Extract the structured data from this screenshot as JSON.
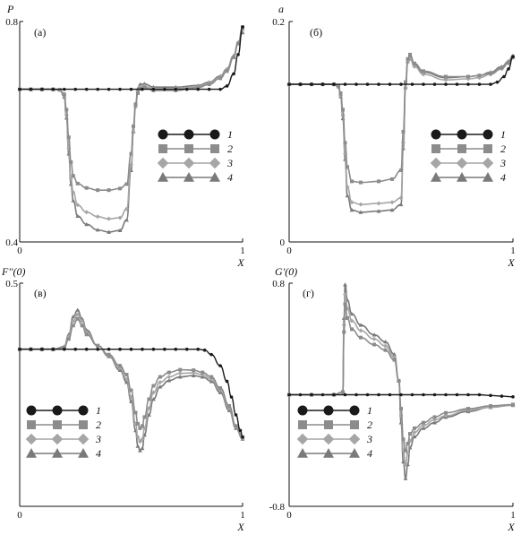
{
  "colors": {
    "series": [
      "#1a1a1a",
      "#8c8c8c",
      "#a6a6a6",
      "#7a7a7a"
    ],
    "axis": "#111111"
  },
  "legend_labels": [
    "1",
    "2",
    "3",
    "4"
  ],
  "chart_data": [
    {
      "type": "line",
      "panel_label": "(а)",
      "ylabel": "P",
      "xlabel": "X",
      "xlim": [
        0,
        1
      ],
      "ylim": [
        0.4,
        0.8
      ],
      "x_ticks": [
        "0",
        "1"
      ],
      "y_ticks": [
        "0.4",
        "0.8"
      ],
      "grid": false,
      "legend_position": "right",
      "series": [
        {
          "name": "1",
          "marker": "circle",
          "x": [
            0,
            0.05,
            0.1,
            0.15,
            0.2,
            0.25,
            0.3,
            0.35,
            0.4,
            0.45,
            0.5,
            0.55,
            0.6,
            0.65,
            0.7,
            0.75,
            0.8,
            0.85,
            0.9,
            0.93,
            0.96,
            0.98,
            1.0
          ],
          "y": [
            0.677,
            0.677,
            0.677,
            0.677,
            0.677,
            0.677,
            0.677,
            0.677,
            0.677,
            0.677,
            0.677,
            0.677,
            0.677,
            0.677,
            0.677,
            0.677,
            0.677,
            0.677,
            0.677,
            0.683,
            0.705,
            0.74,
            0.79
          ]
        },
        {
          "name": "2",
          "marker": "square",
          "x": [
            0,
            0.05,
            0.1,
            0.15,
            0.18,
            0.2,
            0.21,
            0.22,
            0.23,
            0.24,
            0.26,
            0.3,
            0.35,
            0.4,
            0.45,
            0.48,
            0.5,
            0.51,
            0.52,
            0.53,
            0.54,
            0.56,
            0.6,
            0.7,
            0.8,
            0.85,
            0.9,
            0.93,
            0.96,
            0.98,
            1.0
          ],
          "y": [
            0.677,
            0.677,
            0.677,
            0.677,
            0.676,
            0.668,
            0.64,
            0.59,
            0.545,
            0.52,
            0.506,
            0.498,
            0.494,
            0.494,
            0.497,
            0.505,
            0.56,
            0.61,
            0.65,
            0.67,
            0.678,
            0.68,
            0.675,
            0.675,
            0.68,
            0.686,
            0.697,
            0.71,
            0.735,
            0.76,
            0.79
          ]
        },
        {
          "name": "3",
          "marker": "diamond",
          "x": [
            0,
            0.05,
            0.1,
            0.15,
            0.18,
            0.2,
            0.21,
            0.22,
            0.23,
            0.24,
            0.26,
            0.3,
            0.35,
            0.4,
            0.45,
            0.48,
            0.5,
            0.51,
            0.52,
            0.53,
            0.54,
            0.56,
            0.6,
            0.7,
            0.8,
            0.85,
            0.9,
            0.93,
            0.96,
            0.98,
            1.0
          ],
          "y": [
            0.677,
            0.677,
            0.677,
            0.677,
            0.676,
            0.665,
            0.63,
            0.57,
            0.515,
            0.49,
            0.467,
            0.454,
            0.446,
            0.442,
            0.444,
            0.46,
            0.54,
            0.6,
            0.645,
            0.672,
            0.681,
            0.683,
            0.678,
            0.678,
            0.682,
            0.688,
            0.699,
            0.712,
            0.736,
            0.76,
            0.785
          ]
        },
        {
          "name": "4",
          "marker": "triangle",
          "x": [
            0,
            0.05,
            0.1,
            0.15,
            0.18,
            0.2,
            0.21,
            0.22,
            0.23,
            0.24,
            0.26,
            0.3,
            0.35,
            0.4,
            0.45,
            0.48,
            0.5,
            0.51,
            0.52,
            0.53,
            0.54,
            0.56,
            0.6,
            0.7,
            0.8,
            0.85,
            0.9,
            0.93,
            0.96,
            0.98,
            1.0
          ],
          "y": [
            0.677,
            0.677,
            0.677,
            0.677,
            0.676,
            0.663,
            0.625,
            0.56,
            0.505,
            0.475,
            0.447,
            0.432,
            0.422,
            0.418,
            0.421,
            0.44,
            0.53,
            0.6,
            0.65,
            0.678,
            0.686,
            0.687,
            0.681,
            0.681,
            0.684,
            0.69,
            0.701,
            0.714,
            0.738,
            0.762,
            0.78
          ]
        }
      ]
    },
    {
      "type": "line",
      "panel_label": "(б)",
      "ylabel": "a",
      "xlabel": "X",
      "xlim": [
        0,
        1
      ],
      "ylim": [
        0,
        0.2
      ],
      "x_ticks": [
        "0",
        "1"
      ],
      "y_ticks": [
        "0",
        "0.2"
      ],
      "grid": false,
      "legend_position": "right",
      "series": [
        {
          "name": "1",
          "marker": "circle",
          "x": [
            0,
            0.05,
            0.1,
            0.15,
            0.2,
            0.25,
            0.3,
            0.35,
            0.4,
            0.45,
            0.5,
            0.55,
            0.6,
            0.65,
            0.7,
            0.75,
            0.8,
            0.85,
            0.9,
            0.93,
            0.96,
            0.98,
            1.0
          ],
          "y": [
            0.143,
            0.143,
            0.143,
            0.143,
            0.143,
            0.143,
            0.143,
            0.143,
            0.143,
            0.143,
            0.143,
            0.143,
            0.143,
            0.143,
            0.143,
            0.143,
            0.143,
            0.143,
            0.143,
            0.145,
            0.15,
            0.157,
            0.168
          ]
        },
        {
          "name": "2",
          "marker": "square",
          "x": [
            0,
            0.05,
            0.1,
            0.15,
            0.2,
            0.22,
            0.23,
            0.24,
            0.25,
            0.26,
            0.28,
            0.32,
            0.4,
            0.46,
            0.5,
            0.51,
            0.52,
            0.53,
            0.54,
            0.56,
            0.6,
            0.7,
            0.8,
            0.85,
            0.9,
            0.95,
            0.98,
            1.0
          ],
          "y": [
            0.143,
            0.143,
            0.143,
            0.143,
            0.143,
            0.141,
            0.135,
            0.12,
            0.09,
            0.068,
            0.055,
            0.054,
            0.055,
            0.057,
            0.065,
            0.1,
            0.145,
            0.166,
            0.17,
            0.162,
            0.155,
            0.15,
            0.15,
            0.151,
            0.153,
            0.158,
            0.163,
            0.168
          ]
        },
        {
          "name": "3",
          "marker": "diamond",
          "x": [
            0,
            0.05,
            0.1,
            0.15,
            0.2,
            0.22,
            0.23,
            0.24,
            0.25,
            0.26,
            0.28,
            0.32,
            0.4,
            0.46,
            0.5,
            0.51,
            0.52,
            0.53,
            0.54,
            0.56,
            0.6,
            0.7,
            0.8,
            0.85,
            0.9,
            0.95,
            0.98,
            1.0
          ],
          "y": [
            0.143,
            0.143,
            0.143,
            0.143,
            0.143,
            0.141,
            0.133,
            0.115,
            0.08,
            0.05,
            0.036,
            0.034,
            0.035,
            0.036,
            0.04,
            0.09,
            0.14,
            0.163,
            0.166,
            0.159,
            0.152,
            0.147,
            0.148,
            0.149,
            0.152,
            0.157,
            0.162,
            0.167
          ]
        },
        {
          "name": "4",
          "marker": "triangle",
          "x": [
            0,
            0.05,
            0.1,
            0.15,
            0.2,
            0.22,
            0.23,
            0.24,
            0.25,
            0.26,
            0.28,
            0.32,
            0.4,
            0.46,
            0.5,
            0.51,
            0.52,
            0.53,
            0.54,
            0.56,
            0.6,
            0.7,
            0.8,
            0.85,
            0.9,
            0.95,
            0.98,
            1.0
          ],
          "y": [
            0.143,
            0.143,
            0.143,
            0.143,
            0.143,
            0.141,
            0.132,
            0.112,
            0.075,
            0.042,
            0.029,
            0.027,
            0.028,
            0.029,
            0.034,
            0.085,
            0.14,
            0.164,
            0.168,
            0.161,
            0.154,
            0.149,
            0.15,
            0.151,
            0.154,
            0.159,
            0.164,
            0.169
          ]
        }
      ]
    },
    {
      "type": "line",
      "panel_label": "(в)",
      "ylabel": "F''(0)",
      "xlabel": "X",
      "xlim": [
        0,
        1
      ],
      "ylim": [
        0,
        0.5
      ],
      "x_ticks": [
        "0",
        "1"
      ],
      "y_ticks": [
        "0.5"
      ],
      "grid": false,
      "legend_position": "bottom-left",
      "series": [
        {
          "name": "1",
          "marker": "circle",
          "x": [
            0,
            0.05,
            0.1,
            0.15,
            0.2,
            0.25,
            0.3,
            0.35,
            0.4,
            0.45,
            0.5,
            0.55,
            0.6,
            0.65,
            0.7,
            0.75,
            0.8,
            0.83,
            0.86,
            0.9,
            0.93,
            0.95,
            0.97,
            0.99,
            1.0
          ],
          "y": [
            0.352,
            0.352,
            0.352,
            0.352,
            0.352,
            0.352,
            0.352,
            0.352,
            0.352,
            0.352,
            0.352,
            0.352,
            0.352,
            0.352,
            0.352,
            0.352,
            0.352,
            0.35,
            0.34,
            0.315,
            0.28,
            0.245,
            0.205,
            0.17,
            0.155
          ]
        },
        {
          "name": "2",
          "marker": "square",
          "x": [
            0,
            0.05,
            0.1,
            0.15,
            0.2,
            0.22,
            0.24,
            0.26,
            0.28,
            0.3,
            0.35,
            0.4,
            0.45,
            0.48,
            0.5,
            0.52,
            0.53,
            0.54,
            0.55,
            0.56,
            0.58,
            0.6,
            0.63,
            0.67,
            0.72,
            0.78,
            0.82,
            0.86,
            0.9,
            0.94,
            0.97,
            1.0
          ],
          "y": [
            0.352,
            0.352,
            0.352,
            0.352,
            0.356,
            0.375,
            0.405,
            0.42,
            0.405,
            0.385,
            0.36,
            0.34,
            0.315,
            0.295,
            0.26,
            0.21,
            0.185,
            0.175,
            0.18,
            0.2,
            0.24,
            0.27,
            0.29,
            0.3,
            0.306,
            0.305,
            0.3,
            0.29,
            0.265,
            0.225,
            0.18,
            0.155
          ]
        },
        {
          "name": "3",
          "marker": "diamond",
          "x": [
            0,
            0.05,
            0.1,
            0.15,
            0.2,
            0.22,
            0.24,
            0.26,
            0.28,
            0.3,
            0.35,
            0.4,
            0.45,
            0.48,
            0.5,
            0.52,
            0.53,
            0.54,
            0.55,
            0.56,
            0.58,
            0.6,
            0.63,
            0.67,
            0.72,
            0.78,
            0.82,
            0.86,
            0.9,
            0.94,
            0.97,
            1.0
          ],
          "y": [
            0.352,
            0.352,
            0.352,
            0.352,
            0.357,
            0.38,
            0.415,
            0.43,
            0.415,
            0.39,
            0.36,
            0.338,
            0.31,
            0.285,
            0.245,
            0.185,
            0.155,
            0.145,
            0.15,
            0.175,
            0.22,
            0.255,
            0.278,
            0.29,
            0.298,
            0.299,
            0.295,
            0.285,
            0.26,
            0.22,
            0.178,
            0.153
          ]
        },
        {
          "name": "4",
          "marker": "triangle",
          "x": [
            0,
            0.05,
            0.1,
            0.15,
            0.2,
            0.22,
            0.24,
            0.26,
            0.28,
            0.3,
            0.35,
            0.4,
            0.45,
            0.48,
            0.5,
            0.52,
            0.53,
            0.54,
            0.55,
            0.56,
            0.58,
            0.6,
            0.63,
            0.67,
            0.72,
            0.78,
            0.82,
            0.86,
            0.9,
            0.94,
            0.97,
            1.0
          ],
          "y": [
            0.352,
            0.352,
            0.352,
            0.352,
            0.358,
            0.385,
            0.425,
            0.44,
            0.42,
            0.395,
            0.36,
            0.336,
            0.305,
            0.278,
            0.235,
            0.17,
            0.135,
            0.125,
            0.13,
            0.16,
            0.205,
            0.24,
            0.268,
            0.282,
            0.29,
            0.293,
            0.29,
            0.28,
            0.255,
            0.215,
            0.175,
            0.151
          ]
        }
      ]
    },
    {
      "type": "line",
      "panel_label": "(г)",
      "ylabel": "G'(0)",
      "xlabel": "X",
      "xlim": [
        0,
        1
      ],
      "ylim": [
        -0.8,
        0.8
      ],
      "x_ticks": [
        "0",
        "1"
      ],
      "y_ticks": [
        "0.8",
        "-0.8"
      ],
      "grid": false,
      "legend_position": "bottom-left",
      "series": [
        {
          "name": "1",
          "marker": "circle",
          "x": [
            0,
            0.05,
            0.1,
            0.15,
            0.2,
            0.25,
            0.3,
            0.35,
            0.4,
            0.45,
            0.5,
            0.55,
            0.6,
            0.65,
            0.7,
            0.75,
            0.8,
            0.85,
            0.9,
            0.95,
            1.0
          ],
          "y": [
            0,
            0,
            0,
            0,
            0,
            0,
            0,
            0,
            0,
            0,
            0,
            0,
            0,
            0,
            0,
            0,
            0,
            0,
            -0.005,
            -0.01,
            -0.015
          ]
        },
        {
          "name": "2",
          "marker": "square",
          "x": [
            0,
            0.1,
            0.2,
            0.24,
            0.245,
            0.25,
            0.26,
            0.28,
            0.32,
            0.38,
            0.43,
            0.47,
            0.49,
            0.5,
            0.51,
            0.52,
            0.53,
            0.54,
            0.56,
            0.6,
            0.65,
            0.7,
            0.8,
            0.9,
            1.0
          ],
          "y": [
            0,
            0,
            0,
            0.02,
            0.45,
            0.65,
            0.55,
            0.47,
            0.41,
            0.36,
            0.32,
            0.25,
            0.1,
            -0.1,
            -0.32,
            -0.4,
            -0.35,
            -0.28,
            -0.24,
            -0.2,
            -0.16,
            -0.13,
            -0.1,
            -0.08,
            -0.07
          ]
        },
        {
          "name": "3",
          "marker": "diamond",
          "x": [
            0,
            0.1,
            0.2,
            0.24,
            0.245,
            0.25,
            0.26,
            0.28,
            0.32,
            0.38,
            0.43,
            0.47,
            0.49,
            0.5,
            0.51,
            0.52,
            0.53,
            0.54,
            0.56,
            0.6,
            0.65,
            0.7,
            0.8,
            0.9,
            1.0
          ],
          "y": [
            0,
            0,
            0,
            0.02,
            0.5,
            0.72,
            0.62,
            0.53,
            0.46,
            0.4,
            0.35,
            0.27,
            0.1,
            -0.15,
            -0.4,
            -0.5,
            -0.42,
            -0.33,
            -0.27,
            -0.22,
            -0.18,
            -0.15,
            -0.11,
            -0.09,
            -0.075
          ]
        },
        {
          "name": "4",
          "marker": "triangle",
          "x": [
            0,
            0.1,
            0.2,
            0.24,
            0.245,
            0.25,
            0.26,
            0.28,
            0.32,
            0.38,
            0.43,
            0.47,
            0.49,
            0.5,
            0.51,
            0.52,
            0.53,
            0.54,
            0.56,
            0.6,
            0.65,
            0.7,
            0.8,
            0.9,
            1.0
          ],
          "y": [
            0,
            0,
            0,
            0.02,
            0.55,
            0.79,
            0.68,
            0.58,
            0.5,
            0.43,
            0.38,
            0.29,
            0.1,
            -0.2,
            -0.48,
            -0.6,
            -0.5,
            -0.38,
            -0.3,
            -0.24,
            -0.2,
            -0.16,
            -0.12,
            -0.09,
            -0.075
          ]
        }
      ]
    }
  ]
}
